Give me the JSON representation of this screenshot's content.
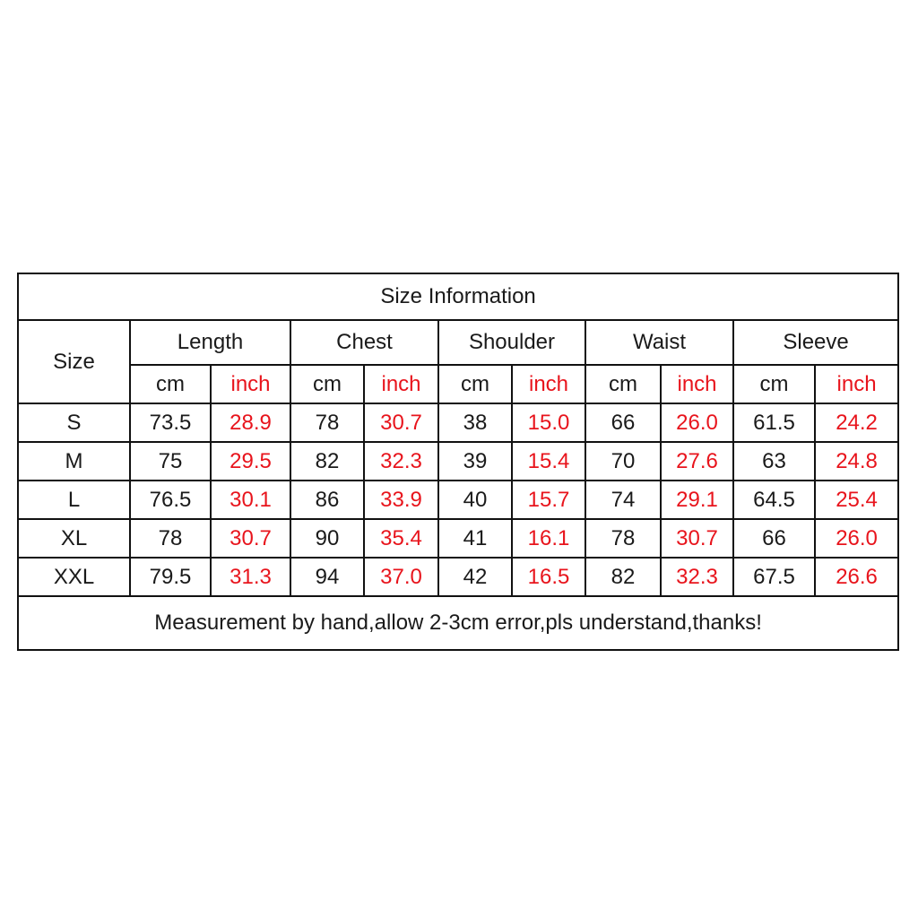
{
  "title": "Size Information",
  "size_header": "Size",
  "groups": [
    "Length",
    "Chest",
    "Shoulder",
    "Waist",
    "Sleeve"
  ],
  "units": {
    "cm": "cm",
    "inch": "inch"
  },
  "colors": {
    "inch_text": "#e8141c",
    "text": "#1a1a1a",
    "border": "#111111"
  },
  "rows": [
    {
      "size": "S",
      "values": [
        "73.5",
        "28.9",
        "78",
        "30.7",
        "38",
        "15.0",
        "66",
        "26.0",
        "61.5",
        "24.2"
      ]
    },
    {
      "size": "M",
      "values": [
        "75",
        "29.5",
        "82",
        "32.3",
        "39",
        "15.4",
        "70",
        "27.6",
        "63",
        "24.8"
      ]
    },
    {
      "size": "L",
      "values": [
        "76.5",
        "30.1",
        "86",
        "33.9",
        "40",
        "15.7",
        "74",
        "29.1",
        "64.5",
        "25.4"
      ]
    },
    {
      "size": "XL",
      "values": [
        "78",
        "30.7",
        "90",
        "35.4",
        "41",
        "16.1",
        "78",
        "30.7",
        "66",
        "26.0"
      ]
    },
    {
      "size": "XXL",
      "values": [
        "79.5",
        "31.3",
        "94",
        "37.0",
        "42",
        "16.5",
        "82",
        "32.3",
        "67.5",
        "26.6"
      ]
    }
  ],
  "footer": "Measurement by hand,allow 2-3cm error,pls understand,thanks!"
}
